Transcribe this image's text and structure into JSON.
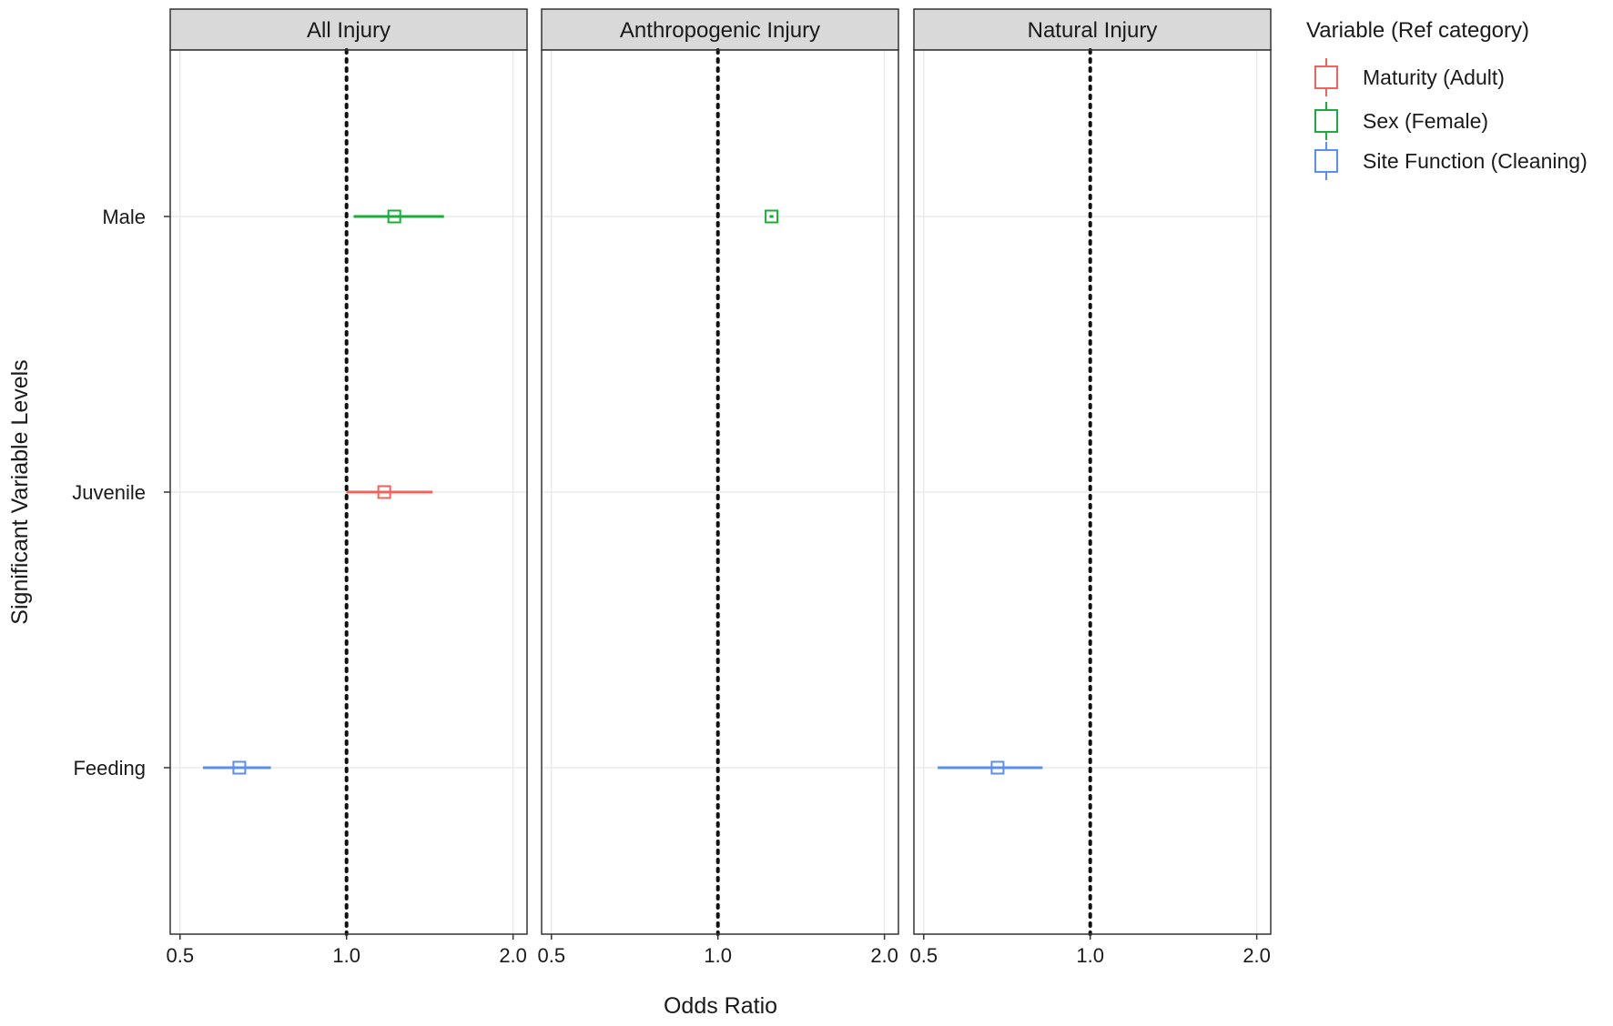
{
  "chart_data": {
    "type": "forest",
    "x_scale": "log",
    "xlabel": "Odds Ratio",
    "ylabel": "Significant Variable Levels",
    "xlim": [
      0.48,
      2.12
    ],
    "x_ticks": [
      0.5,
      1.0,
      2.0
    ],
    "x_tick_labels": [
      "0.5",
      "1.0",
      "2.0"
    ],
    "reference_line": 1.0,
    "grid": true,
    "categories": [
      "Male",
      "Juvenile",
      "Feeding"
    ],
    "panels": [
      {
        "title": "All Injury",
        "points": [
          {
            "category": "Male",
            "series": "Sex (Female)",
            "or": 1.22,
            "lo": 1.03,
            "hi": 1.5
          },
          {
            "category": "Juvenile",
            "series": "Maturity (Adult)",
            "or": 1.17,
            "lo": 1.0,
            "hi": 1.43
          },
          {
            "category": "Feeding",
            "series": "Site Function (Cleaning)",
            "or": 0.64,
            "lo": 0.55,
            "hi": 0.73
          }
        ]
      },
      {
        "title": "Anthropogenic Injury",
        "points": [
          {
            "category": "Male",
            "series": "Sex (Female)",
            "or": 1.25,
            "lo": 1.24,
            "hi": 1.26
          }
        ]
      },
      {
        "title": "Natural Injury",
        "points": [
          {
            "category": "Feeding",
            "series": "Site Function (Cleaning)",
            "or": 0.68,
            "lo": 0.53,
            "hi": 0.82
          }
        ]
      }
    ],
    "legend": {
      "title": "Variable (Ref category)",
      "position": "right",
      "items": [
        {
          "label": "Maturity (Adult)",
          "color": "#f0625a"
        },
        {
          "label": "Sex (Female)",
          "color": "#1aad3a"
        },
        {
          "label": "Site Function (Cleaning)",
          "color": "#5a8ff0"
        }
      ]
    }
  }
}
